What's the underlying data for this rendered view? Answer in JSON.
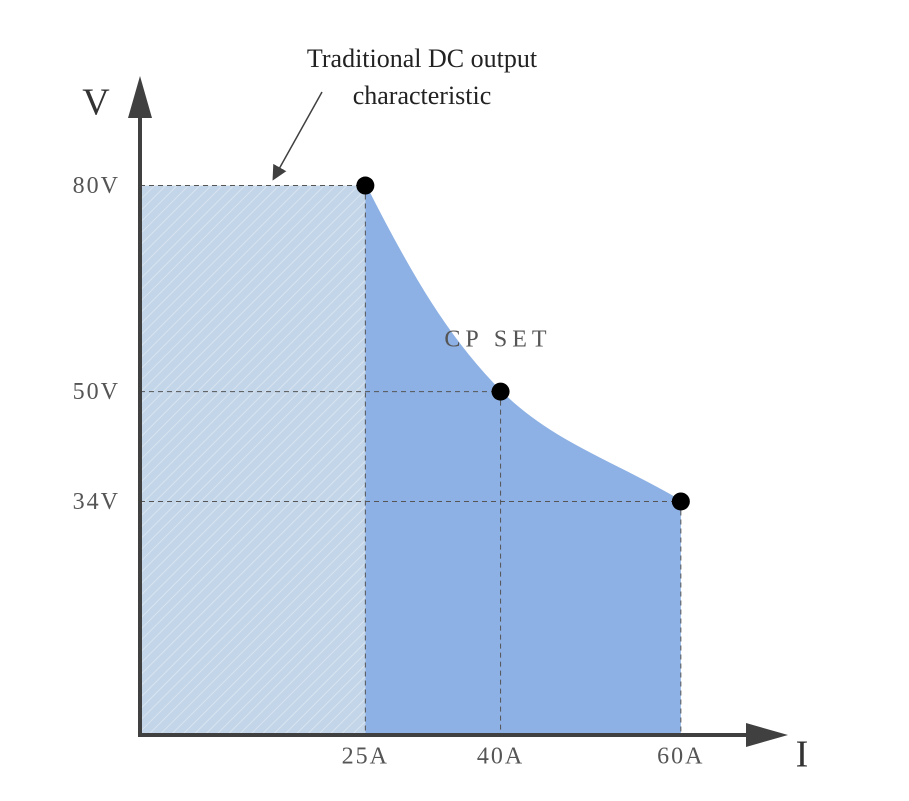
{
  "chart_data": {
    "type": "area",
    "annotation": [
      "Traditional DC output",
      "characteristic"
    ],
    "curve_label": "CP SET",
    "x_label": "I",
    "y_label": "V",
    "x": [
      25,
      40,
      60
    ],
    "values": [
      80,
      50,
      34
    ],
    "xlim": [
      0,
      71
    ],
    "ylim": [
      0,
      91
    ],
    "xticks": [
      {
        "value": 25,
        "label": "25A"
      },
      {
        "value": 40,
        "label": "40A"
      },
      {
        "value": 60,
        "label": "60A"
      }
    ],
    "yticks": [
      {
        "value": 80,
        "label": "80V"
      },
      {
        "value": 50,
        "label": "50V"
      },
      {
        "value": 34,
        "label": "34V"
      }
    ],
    "traditional_color": "#c3d5e8",
    "cp_color": "#8db1e4",
    "axis_color": "#404040",
    "point_color": "#000000"
  }
}
